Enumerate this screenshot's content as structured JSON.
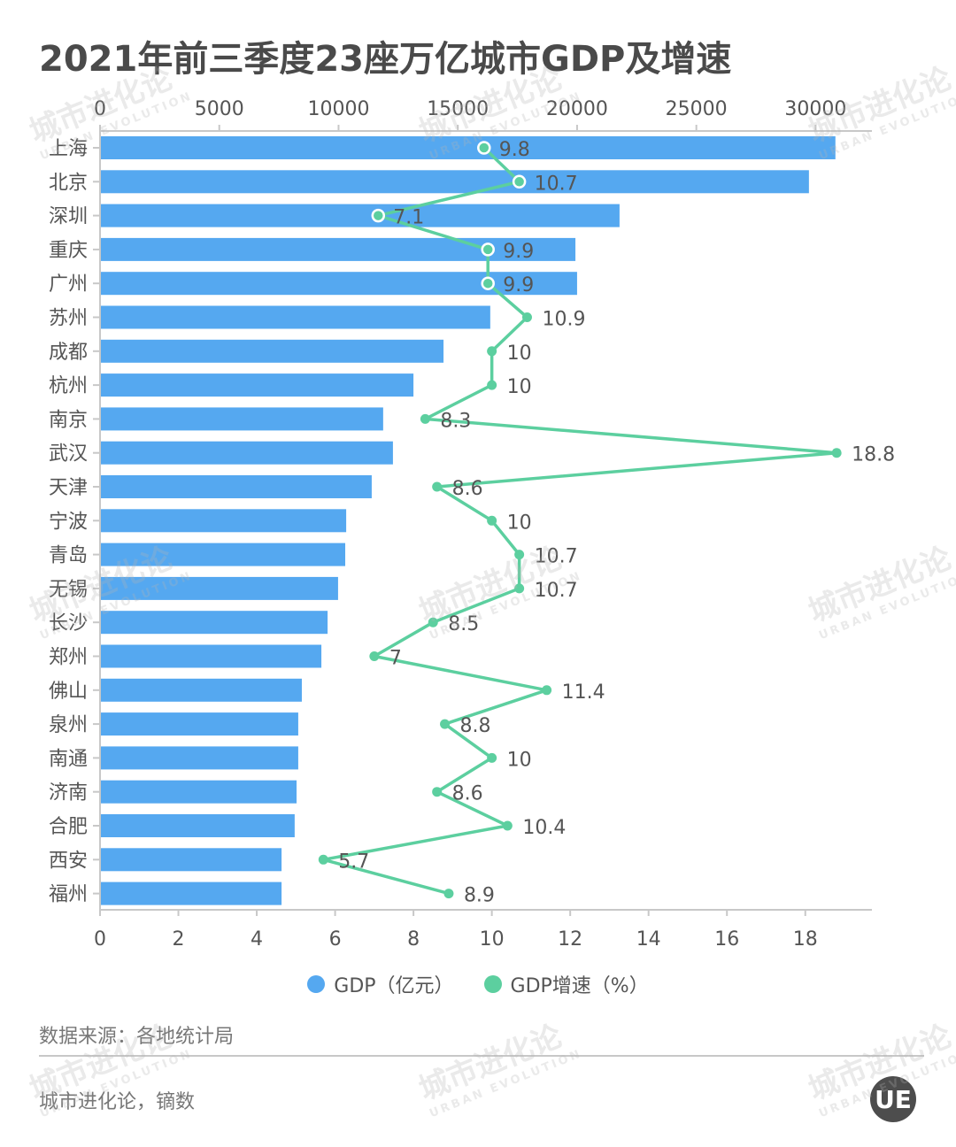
{
  "title": "2021年前三季度23座万亿城市GDP及速",
  "title_full": "2021年前三季度23座万亿城市GDP及增速",
  "source": "数据来源：各地统计局",
  "credit": "城市进化论，镝数",
  "logo_text": "UE",
  "watermark": {
    "cn": "城市进化论",
    "en": "URBAN EVOLUTION"
  },
  "colors": {
    "bar": "#55a8f0",
    "line": "#5ccf9f",
    "axis": "#c8c8c8",
    "text": "#555555"
  },
  "legend": [
    {
      "label": "GDP（亿元）",
      "color": "#55a8f0"
    },
    {
      "label": "GDP增速（%）",
      "color": "#5ccf9f"
    }
  ],
  "chart_data": {
    "type": "bar",
    "orientation": "horizontal",
    "title": "2021年前三季度23座万亿城市GDP及增速",
    "categories": [
      "上海",
      "北京",
      "深圳",
      "重庆",
      "广州",
      "苏州",
      "成都",
      "杭州",
      "南京",
      "武汉",
      "天津",
      "宁波",
      "青岛",
      "无锡",
      "长沙",
      "郑州",
      "佛山",
      "泉州",
      "南通",
      "济南",
      "合肥",
      "西安",
      "福州"
    ],
    "series": [
      {
        "name": "GDP（亿元）",
        "type": "bar",
        "axis": "top",
        "values": [
          30830,
          29720,
          21780,
          19930,
          20000,
          16360,
          14400,
          13140,
          11870,
          12280,
          11390,
          10320,
          10280,
          9980,
          9540,
          9280,
          8460,
          8310,
          8310,
          8240,
          8160,
          7610,
          7610
        ]
      },
      {
        "name": "GDP增速（%）",
        "type": "line",
        "axis": "bottom",
        "values": [
          9.8,
          10.7,
          7.1,
          9.9,
          9.9,
          10.9,
          10,
          10,
          8.3,
          18.8,
          8.6,
          10,
          10.7,
          10.7,
          8.5,
          7,
          11.4,
          8.8,
          10,
          8.6,
          10.4,
          5.7,
          8.9
        ],
        "labels": [
          "9.8",
          "10.7",
          "7.1",
          "9.9",
          "9.9",
          "10.9",
          "10",
          "10",
          "8.3",
          "18.8",
          "8.6",
          "10",
          "10.7",
          "10.7",
          "8.5",
          "7",
          "11.4",
          "8.8",
          "10",
          "8.6",
          "10.4",
          "5.7",
          "8.9"
        ]
      }
    ],
    "top_axis": {
      "label": "",
      "ticks": [
        0,
        5000,
        10000,
        15000,
        20000,
        25000,
        30000
      ],
      "range": [
        0,
        32360
      ]
    },
    "bottom_axis": {
      "label": "",
      "ticks": [
        0,
        2,
        4,
        6,
        8,
        10,
        12,
        14,
        16,
        18
      ],
      "range": [
        0,
        19.7
      ]
    },
    "grid": false,
    "legend_position": "bottom-center"
  }
}
